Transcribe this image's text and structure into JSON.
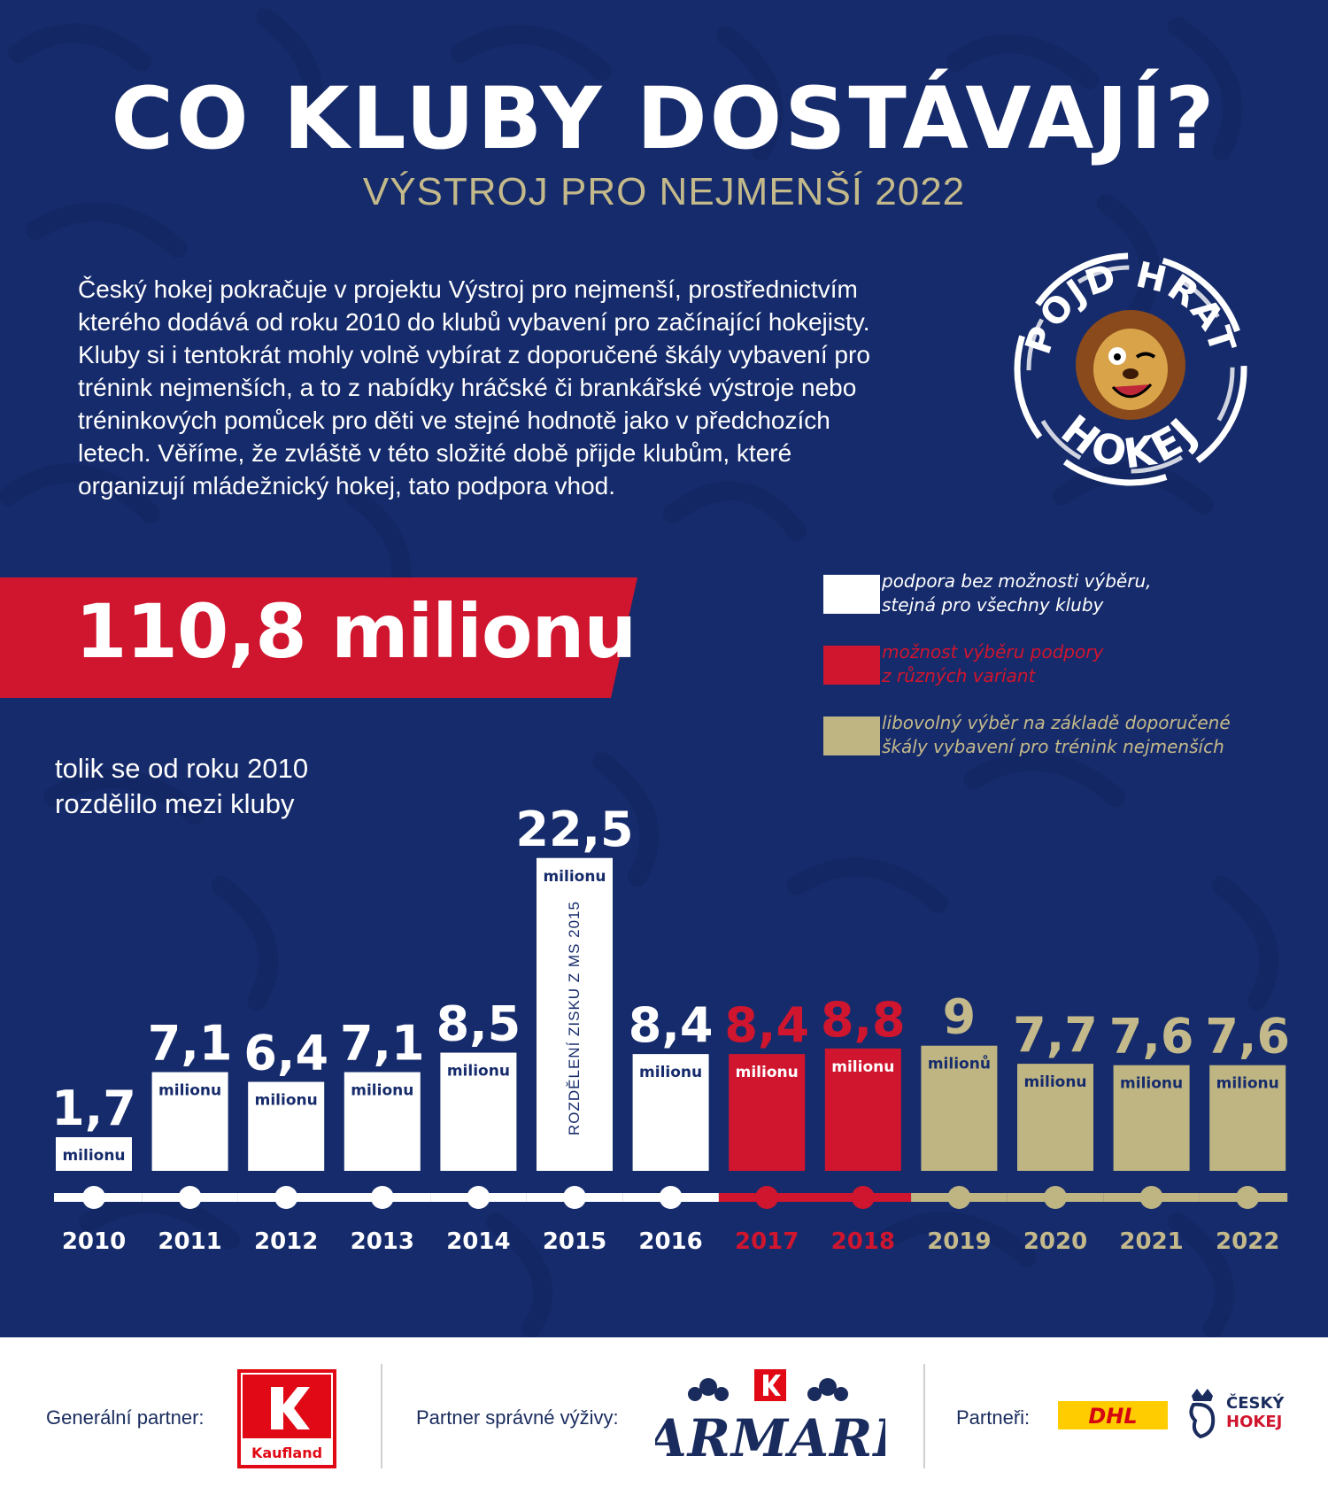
{
  "title": "CO KLUBY DOSTÁVAJÍ?",
  "subtitle": "VÝSTROJ PRO NEJMENŠÍ 2022",
  "intro_lines": [
    "Český hokej pokračuje v projektu Výstroj pro nejmenší, prostřednictvím",
    "kterého dodává od roku 2010 do klubů vybavení pro začínající hokejisty.",
    "Kluby si i tentokrát mohly volně vybírat z doporučené škály vybavení pro",
    "trénink nejmenších, a to z nabídky hráčské či brankářské výstroje nebo",
    "tréninkových pomůcek pro děti ve stejné hodnotě jako v předchozích",
    "letech. Věříme, že zvláště v této složité době přijde klubům, které",
    "organizují mládežnický hokej, tato podpora vhod."
  ],
  "logo": {
    "top_text": "POJĎ HRÁT",
    "bottom_text": "HOKEJ"
  },
  "total": {
    "value": "110,8 milionu",
    "note_line1": "tolik se od roku 2010",
    "note_line2": "rozdělilo mezi kluby"
  },
  "legend": [
    {
      "line1": "podpora bez možnosti výběru,",
      "line2": "stejná pro všechny kluby",
      "color": "#ffffff",
      "text_color": "#ffffff"
    },
    {
      "line1": "možnost výběru podpory",
      "line2": "z různých variant",
      "color": "#d0152e",
      "text_color": "#d0152e"
    },
    {
      "line1": "libovolný výběr na základě doporučené",
      "line2": "škály vybavení pro trénink nejmenších",
      "color": "#bfb583",
      "text_color": "#c4b98a"
    }
  ],
  "chart_data": {
    "type": "bar",
    "categories": [
      "2010",
      "2011",
      "2012",
      "2013",
      "2014",
      "2015",
      "2016",
      "2017",
      "2018",
      "2019",
      "2020",
      "2021",
      "2022"
    ],
    "values": [
      1.7,
      7.1,
      6.4,
      7.1,
      8.5,
      22.5,
      8.4,
      8.4,
      8.8,
      9,
      7.7,
      7.6,
      7.6
    ],
    "value_labels": [
      "1,7",
      "7,1",
      "6,4",
      "7,1",
      "8,5",
      "22,5",
      "8,4",
      "8,4",
      "8,8",
      "9",
      "7,7",
      "7,6",
      "7,6"
    ],
    "unit_labels": [
      "milionu",
      "milionu",
      "milionu",
      "milionu",
      "milionu",
      "milionu",
      "milionu",
      "milionu",
      "milionu",
      "milionů",
      "milionu",
      "milionu",
      "milionu"
    ],
    "groups": [
      "white",
      "white",
      "white",
      "white",
      "white",
      "white",
      "white",
      "red",
      "red",
      "gold",
      "gold",
      "gold",
      "gold"
    ],
    "colors": {
      "white": "#ffffff",
      "red": "#d0152e",
      "gold": "#bfb583"
    },
    "label_colors": {
      "white": "#ffffff",
      "red": "#d0152e",
      "gold": "#c4b98a"
    },
    "bar_annotation": {
      "index": 5,
      "text": "ROZDĚLENÍ ZISKU Z MS 2015"
    }
  },
  "footer": {
    "general_partner_label": "Generální partner:",
    "general_partner_name": "Kaufland",
    "nutrition_partner_label": "Partner správné výživy:",
    "nutrition_partner_name": "JARMARK",
    "partners_label": "Partneři:",
    "partner1_name": "DHL",
    "partner2_line1": "ČESKÝ",
    "partner2_line2": "HOKEJ"
  }
}
